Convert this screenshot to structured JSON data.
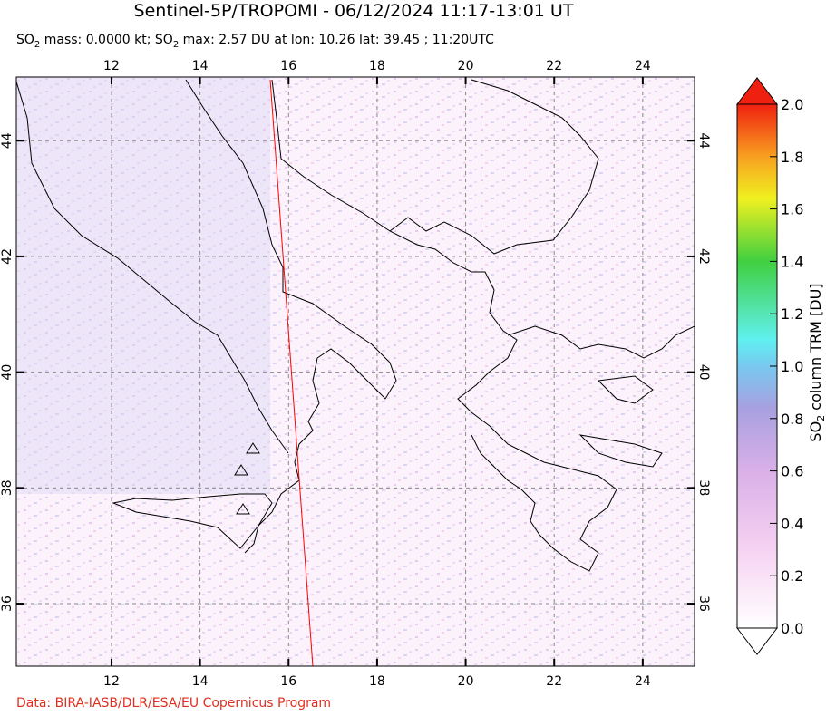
{
  "title": "Sentinel-5P/TROPOMI - 06/12/2024 11:17-13:01 UT",
  "subtitle": [
    "SO",
    "2",
    " mass: 0.0000 kt; SO",
    "2",
    " max: 2.57 DU at lon: 10.26 lat: 39.45 ; 11:20UTC"
  ],
  "map": {
    "xlim": [
      9.85,
      25.17
    ],
    "ylim": [
      34.92,
      45.1
    ],
    "xticks": [
      12,
      14,
      16,
      18,
      20,
      22,
      24
    ],
    "yticks": [
      36,
      38,
      40,
      42,
      44
    ]
  },
  "colorbar": {
    "label": [
      "SO",
      "2",
      " column TRM [DU]"
    ],
    "lim": [
      0,
      2
    ],
    "ticks": [
      {
        "value": 0,
        "label": "0.0"
      },
      {
        "value": 0.2,
        "label": "0.2"
      },
      {
        "value": 0.4,
        "label": "0.4"
      },
      {
        "value": 0.6,
        "label": "0.6"
      },
      {
        "value": 0.8,
        "label": "0.8"
      },
      {
        "value": 1,
        "label": "1.0"
      },
      {
        "value": 1.2,
        "label": "1.2"
      },
      {
        "value": 1.4,
        "label": "1.4"
      },
      {
        "value": 1.6,
        "label": "1.6"
      },
      {
        "value": 1.8,
        "label": "1.8"
      },
      {
        "value": 2,
        "label": "2.0"
      }
    ]
  },
  "credit": "Data: BIRA-IASB/DLR/ESA/EU Copernicus Program"
}
